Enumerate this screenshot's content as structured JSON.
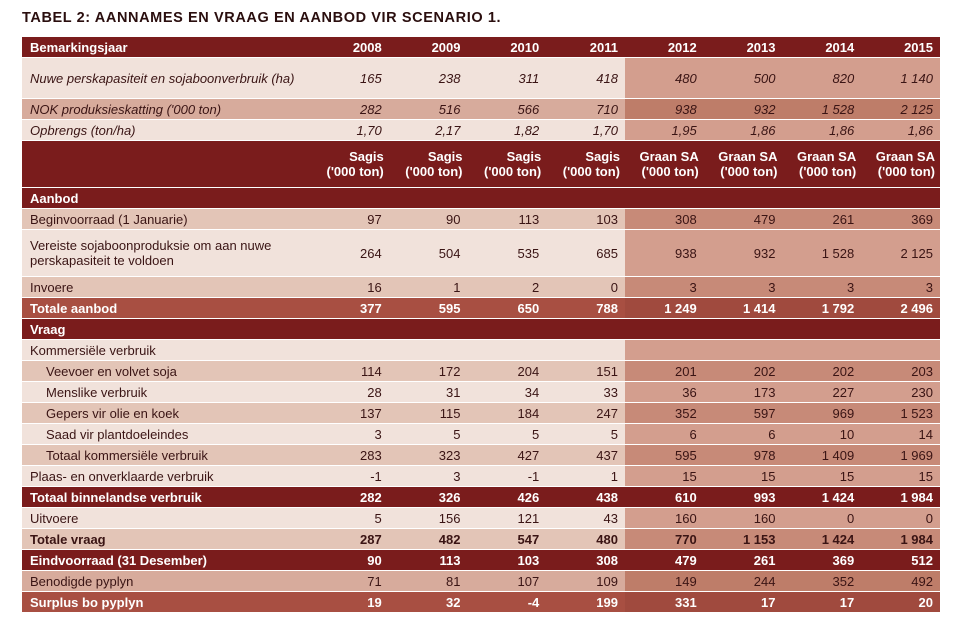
{
  "title": "TABEL 2: AANNAMES EN VRAAG EN AANBOD VIR SCENARIO 1.",
  "header": {
    "label": "Bemarkingsjaar",
    "years": [
      "2008",
      "2009",
      "2010",
      "2011",
      "2012",
      "2013",
      "2014",
      "2015"
    ]
  },
  "assumptions": [
    {
      "label": "Nuwe perskapasiteit en sojaboonverbruik (ha)",
      "values": [
        "165",
        "238",
        "311",
        "418",
        "480",
        "500",
        "820",
        "1 140"
      ]
    },
    {
      "label": "NOK produksieskatting ('000 ton)",
      "values": [
        "282",
        "516",
        "566",
        "710",
        "938",
        "932",
        "1 528",
        "2 125"
      ]
    },
    {
      "label": "Opbrengs (ton/ha)",
      "values": [
        "1,70",
        "2,17",
        "1,82",
        "1,70",
        "1,95",
        "1,86",
        "1,86",
        "1,86"
      ]
    }
  ],
  "units": [
    {
      "line1": "Sagis",
      "line2": "('000 ton)"
    },
    {
      "line1": "Sagis",
      "line2": "('000 ton)"
    },
    {
      "line1": "Sagis",
      "line2": "('000 ton)"
    },
    {
      "line1": "Sagis",
      "line2": "('000 ton)"
    },
    {
      "line1": "Graan SA",
      "line2": "('000 ton)"
    },
    {
      "line1": "Graan SA",
      "line2": "('000 ton)"
    },
    {
      "line1": "Graan SA",
      "line2": "('000 ton)"
    },
    {
      "line1": "Graan SA",
      "line2": "('000 ton)"
    }
  ],
  "supply": {
    "section": "Aanbod",
    "rows": [
      {
        "label": "Beginvoorraad (1 Januarie)",
        "values": [
          "97",
          "90",
          "113",
          "103",
          "308",
          "479",
          "261",
          "369"
        ]
      },
      {
        "label": "Vereiste sojaboonproduksie om aan nuwe perskapasiteit te voldoen",
        "values": [
          "264",
          "504",
          "535",
          "685",
          "938",
          "932",
          "1 528",
          "2 125"
        ]
      },
      {
        "label": "Invoere",
        "values": [
          "16",
          "1",
          "2",
          "0",
          "3",
          "3",
          "3",
          "3"
        ]
      }
    ],
    "total": {
      "label": "Totale aanbod",
      "values": [
        "377",
        "595",
        "650",
        "788",
        "1 249",
        "1 414",
        "1 792",
        "2 496"
      ]
    }
  },
  "demand": {
    "section": "Vraag",
    "commercial_label": "Kommersiële verbruik",
    "commercial_rows": [
      {
        "label": "Veevoer en volvet soja",
        "values": [
          "114",
          "172",
          "204",
          "151",
          "201",
          "202",
          "202",
          "203"
        ]
      },
      {
        "label": "Menslike verbruik",
        "values": [
          "28",
          "31",
          "34",
          "33",
          "36",
          "173",
          "227",
          "230"
        ]
      },
      {
        "label": "Gepers vir olie en koek",
        "values": [
          "137",
          "115",
          "184",
          "247",
          "352",
          "597",
          "969",
          "1 523"
        ]
      },
      {
        "label": "Saad vir plantdoeleindes",
        "values": [
          "3",
          "5",
          "5",
          "5",
          "6",
          "6",
          "10",
          "14"
        ]
      },
      {
        "label": "Totaal kommersiële verbruik",
        "values": [
          "283",
          "323",
          "427",
          "437",
          "595",
          "978",
          "1 409",
          "1 969"
        ]
      }
    ],
    "onfarm": {
      "label": "Plaas- en onverklaarde verbruik",
      "values": [
        "-1",
        "3",
        "-1",
        "1",
        "15",
        "15",
        "15",
        "15"
      ]
    },
    "domestic_total": {
      "label": "Totaal binnelandse verbruik",
      "values": [
        "282",
        "326",
        "426",
        "438",
        "610",
        "993",
        "1 424",
        "1 984"
      ]
    },
    "exports": {
      "label": "Uitvoere",
      "values": [
        "5",
        "156",
        "121",
        "43",
        "160",
        "160",
        "0",
        "0"
      ]
    },
    "total": {
      "label": "Totale vraag",
      "values": [
        "287",
        "482",
        "547",
        "480",
        "770",
        "1 153",
        "1 424",
        "1 984"
      ]
    }
  },
  "closing": {
    "label": "Eindvoorraad (31 Desember)",
    "values": [
      "90",
      "113",
      "103",
      "308",
      "479",
      "261",
      "369",
      "512"
    ]
  },
  "pipeline": {
    "label": "Benodigde pyplyn",
    "values": [
      "71",
      "81",
      "107",
      "109",
      "149",
      "244",
      "352",
      "492"
    ]
  },
  "surplus": {
    "label": "Surplus bo pyplyn",
    "values": [
      "19",
      "32",
      "-4",
      "199",
      "331",
      "17",
      "17",
      "20"
    ]
  }
}
